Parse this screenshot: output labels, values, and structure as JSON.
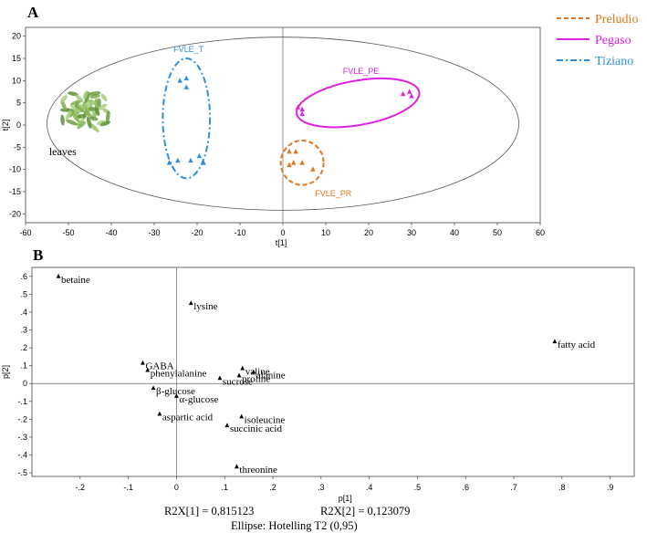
{
  "panels": {
    "a": "A",
    "b": "B"
  },
  "legend": [
    {
      "name": "Preludio",
      "color": "#E0761E",
      "dash": "5,3"
    },
    {
      "name": "Pegaso",
      "color": "#E020E0",
      "dash": ""
    },
    {
      "name": "Tiziano",
      "color": "#2E8FE0",
      "dash": "7,3,2,3"
    }
  ],
  "chart_data": [
    {
      "type": "scatter",
      "xlabel": "t[1]",
      "ylabel": "t[2]",
      "xlim": [
        -60,
        60
      ],
      "ylim": [
        -22,
        22
      ],
      "xticks": [
        -60,
        -50,
        -40,
        -30,
        -20,
        -10,
        0,
        10,
        20,
        30,
        40,
        50,
        60
      ],
      "yticks": [
        -20,
        -15,
        -10,
        -5,
        0,
        5,
        10,
        15,
        20
      ],
      "hotelling_ellipse": {
        "cx": 0,
        "cy": 0.3,
        "rx": 55,
        "ry": 19.5
      },
      "image_label": "leaves",
      "series": [
        {
          "name": "FVLE_T",
          "color": "#2E8FE0",
          "points": [
            [
              -24,
              10
            ],
            [
              -22.5,
              10.5
            ],
            [
              -22.5,
              8.5
            ],
            [
              -26.5,
              -8.5
            ],
            [
              -21.5,
              -8
            ],
            [
              -19.5,
              -7
            ],
            [
              -18.5,
              -8.5
            ],
            [
              -24.5,
              -8
            ]
          ],
          "ellipse": {
            "cx": -22.5,
            "cy": 1.5,
            "rx": 5.5,
            "ry": 13.5
          },
          "label_pos": [
            -25.5,
            16.5
          ]
        },
        {
          "name": "FVLE_PE",
          "color": "#E020E0",
          "points": [
            [
              3.5,
              4
            ],
            [
              4.5,
              3.5
            ],
            [
              4.5,
              2.5
            ],
            [
              28,
              7
            ],
            [
              29.5,
              7.5
            ],
            [
              30,
              6.5
            ]
          ],
          "ellipse": {
            "cx": 17.5,
            "cy": 5.0,
            "rx": 14.5,
            "ry": 5.0,
            "rot": -10
          },
          "label_pos": [
            14,
            11.5
          ]
        },
        {
          "name": "FVLE_PR",
          "color": "#E0761E",
          "points": [
            [
              1.5,
              -6
            ],
            [
              3,
              -6
            ],
            [
              2.5,
              -8.5
            ],
            [
              4.5,
              -8.5
            ],
            [
              1.5,
              -9
            ],
            [
              7,
              -10
            ]
          ],
          "ellipse": {
            "cx": 4.5,
            "cy": -8.5,
            "rx": 5,
            "ry": 5
          },
          "label_pos": [
            7.5,
            -16
          ]
        }
      ]
    },
    {
      "type": "scatter",
      "xlabel": "p[1]",
      "ylabel": "p[2]",
      "xlim": [
        -0.3,
        0.95
      ],
      "ylim": [
        -0.52,
        0.65
      ],
      "xticks": [
        -0.2,
        -0.1,
        0.0,
        0.1,
        0.2,
        0.3,
        0.4,
        0.5,
        0.6,
        0.7,
        0.8,
        0.9
      ],
      "yticks": [
        0.6,
        0.5,
        0.4,
        0.3,
        0.2,
        0.1,
        0.0,
        -0.1,
        -0.2,
        -0.3,
        -0.4,
        -0.5
      ],
      "points": [
        {
          "label": "betaine",
          "x": -0.245,
          "y": 0.6
        },
        {
          "label": "lysine",
          "x": 0.03,
          "y": 0.45
        },
        {
          "label": "fatty acid",
          "x": 0.785,
          "y": 0.235
        },
        {
          "label": "GABA",
          "x": -0.07,
          "y": 0.115
        },
        {
          "label": "phenylalanine",
          "x": -0.06,
          "y": 0.075
        },
        {
          "label": "valine",
          "x": 0.137,
          "y": 0.085
        },
        {
          "label": "alanine",
          "x": 0.16,
          "y": 0.065
        },
        {
          "label": "proline",
          "x": 0.13,
          "y": 0.045
        },
        {
          "label": "sucrose",
          "x": 0.09,
          "y": 0.03
        },
        {
          "label": "β-glucose",
          "x": -0.048,
          "y": -0.025
        },
        {
          "label": "α-glucose",
          "x": 0.0,
          "y": -0.07
        },
        {
          "label": "aspartic acid",
          "x": -0.035,
          "y": -0.17
        },
        {
          "label": "isoleucine",
          "x": 0.135,
          "y": -0.185
        },
        {
          "label": "succinic acid",
          "x": 0.105,
          "y": -0.235
        },
        {
          "label": "threonine",
          "x": 0.125,
          "y": -0.465
        }
      ]
    }
  ],
  "footer": {
    "r2x1": "R2X[1] = 0,815123",
    "r2x2": "R2X[2] = 0,123079",
    "ellipse": "Ellipse: Hotelling T2 (0,95)"
  }
}
